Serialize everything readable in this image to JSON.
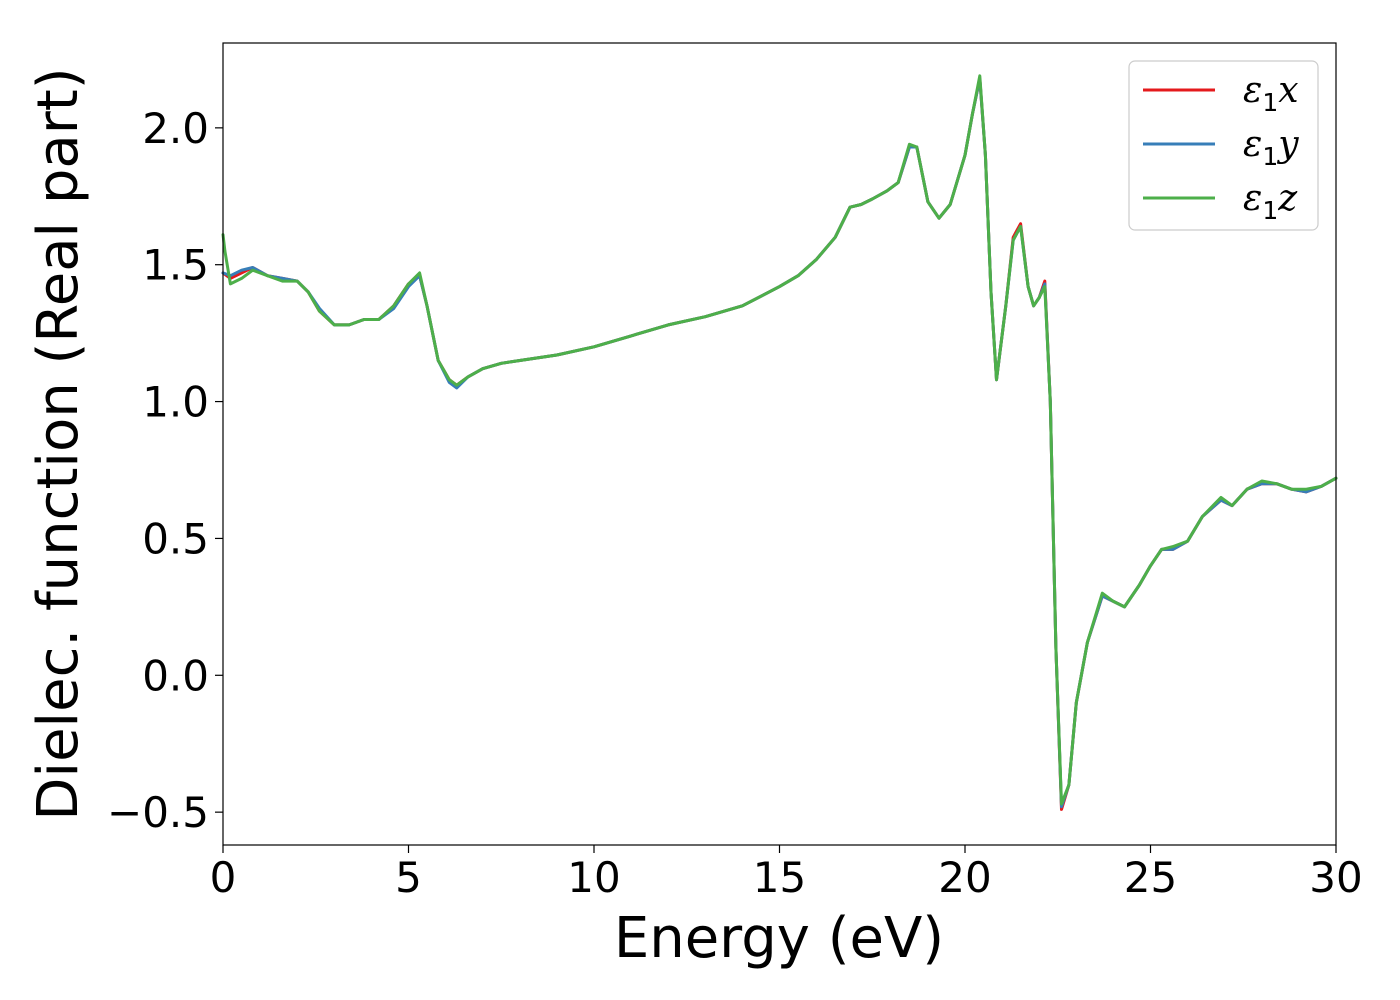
{
  "chart_data": {
    "type": "line",
    "title": "",
    "xlabel": "Energy (eV)",
    "ylabel": "Dielec. function (Real part)",
    "xlim": [
      0,
      30
    ],
    "ylim": [
      -0.62,
      2.31
    ],
    "xticks": [
      0,
      5,
      10,
      15,
      20,
      25,
      30
    ],
    "yticks": [
      -0.5,
      0.0,
      0.5,
      1.0,
      1.5,
      2.0
    ],
    "xtick_labels": [
      "0",
      "5",
      "10",
      "15",
      "20",
      "25",
      "30"
    ],
    "ytick_labels": [
      "−0.5",
      "0.0",
      "0.5",
      "1.0",
      "1.5",
      "2.0"
    ],
    "grid": false,
    "legend_position": "top-right",
    "series": [
      {
        "name": "ε1x",
        "legend_base": "ε",
        "legend_sub": "1",
        "legend_var": "x",
        "color": "#e41a1c",
        "x": [
          0,
          0.2,
          0.5,
          0.8,
          1.2,
          1.6,
          2.0,
          2.3,
          2.6,
          3.0,
          3.4,
          3.8,
          4.2,
          4.6,
          5.0,
          5.3,
          5.5,
          5.8,
          6.1,
          6.3,
          6.6,
          7.0,
          7.5,
          8.0,
          9.0,
          10.0,
          11.0,
          12.0,
          13.0,
          14.0,
          15.0,
          15.5,
          16.0,
          16.5,
          16.9,
          17.2,
          17.5,
          17.9,
          18.2,
          18.5,
          18.7,
          19.0,
          19.3,
          19.6,
          20.0,
          20.2,
          20.4,
          20.55,
          20.7,
          20.85,
          21.1,
          21.3,
          21.5,
          21.7,
          21.85,
          22.0,
          22.15,
          22.3,
          22.45,
          22.6,
          22.8,
          23.0,
          23.3,
          23.7,
          24.0,
          24.3,
          24.7,
          25.0,
          25.3,
          25.6,
          26.0,
          26.4,
          26.9,
          27.2,
          27.6,
          28.0,
          28.4,
          28.8,
          29.2,
          29.6,
          30.0
        ],
        "y": [
          1.47,
          1.45,
          1.47,
          1.49,
          1.46,
          1.45,
          1.44,
          1.4,
          1.33,
          1.28,
          1.28,
          1.3,
          1.3,
          1.35,
          1.43,
          1.46,
          1.35,
          1.15,
          1.08,
          1.06,
          1.09,
          1.12,
          1.14,
          1.15,
          1.17,
          1.2,
          1.24,
          1.28,
          1.31,
          1.35,
          1.42,
          1.46,
          1.52,
          1.6,
          1.71,
          1.72,
          1.74,
          1.77,
          1.8,
          1.93,
          1.93,
          1.73,
          1.67,
          1.72,
          1.9,
          2.05,
          2.18,
          1.9,
          1.4,
          1.08,
          1.35,
          1.6,
          1.65,
          1.42,
          1.35,
          1.38,
          1.44,
          1.0,
          0.1,
          -0.49,
          -0.4,
          -0.1,
          0.12,
          0.29,
          0.27,
          0.25,
          0.33,
          0.4,
          0.46,
          0.46,
          0.49,
          0.58,
          0.64,
          0.62,
          0.68,
          0.7,
          0.7,
          0.68,
          0.67,
          0.69,
          0.72
        ]
      },
      {
        "name": "ε1y",
        "legend_base": "ε",
        "legend_sub": "1",
        "legend_var": "y",
        "color": "#377eb8",
        "x": [
          0,
          0.2,
          0.5,
          0.8,
          1.2,
          1.6,
          2.0,
          2.3,
          2.6,
          3.0,
          3.4,
          3.8,
          4.2,
          4.6,
          5.0,
          5.3,
          5.5,
          5.8,
          6.1,
          6.3,
          6.6,
          7.0,
          7.5,
          8.0,
          9.0,
          10.0,
          11.0,
          12.0,
          13.0,
          14.0,
          15.0,
          15.5,
          16.0,
          16.5,
          16.9,
          17.2,
          17.5,
          17.9,
          18.2,
          18.5,
          18.7,
          19.0,
          19.3,
          19.6,
          20.0,
          20.2,
          20.4,
          20.55,
          20.7,
          20.85,
          21.1,
          21.3,
          21.5,
          21.7,
          21.85,
          22.0,
          22.15,
          22.3,
          22.45,
          22.6,
          22.8,
          23.0,
          23.3,
          23.7,
          24.0,
          24.3,
          24.7,
          25.0,
          25.3,
          25.6,
          26.0,
          26.4,
          26.9,
          27.2,
          27.6,
          28.0,
          28.4,
          28.8,
          29.2,
          29.6,
          30.0
        ],
        "y": [
          1.47,
          1.46,
          1.48,
          1.49,
          1.46,
          1.45,
          1.44,
          1.4,
          1.34,
          1.28,
          1.28,
          1.3,
          1.3,
          1.34,
          1.42,
          1.46,
          1.35,
          1.15,
          1.07,
          1.05,
          1.09,
          1.12,
          1.14,
          1.15,
          1.17,
          1.2,
          1.24,
          1.28,
          1.31,
          1.35,
          1.42,
          1.46,
          1.52,
          1.6,
          1.71,
          1.72,
          1.74,
          1.77,
          1.8,
          1.93,
          1.93,
          1.73,
          1.67,
          1.72,
          1.9,
          2.05,
          2.18,
          1.9,
          1.4,
          1.08,
          1.35,
          1.59,
          1.64,
          1.42,
          1.35,
          1.38,
          1.43,
          1.0,
          0.1,
          -0.48,
          -0.4,
          -0.1,
          0.12,
          0.29,
          0.27,
          0.25,
          0.33,
          0.4,
          0.46,
          0.46,
          0.49,
          0.58,
          0.64,
          0.62,
          0.68,
          0.7,
          0.7,
          0.68,
          0.67,
          0.69,
          0.72
        ]
      },
      {
        "name": "ε1z",
        "legend_base": "ε",
        "legend_sub": "1",
        "legend_var": "z",
        "color": "#4daf4a",
        "x": [
          0,
          0.05,
          0.2,
          0.5,
          0.8,
          1.2,
          1.6,
          2.0,
          2.3,
          2.6,
          3.0,
          3.4,
          3.8,
          4.2,
          4.6,
          5.0,
          5.3,
          5.5,
          5.8,
          6.1,
          6.3,
          6.6,
          7.0,
          7.5,
          8.0,
          9.0,
          10.0,
          11.0,
          12.0,
          13.0,
          14.0,
          15.0,
          15.5,
          16.0,
          16.5,
          16.9,
          17.2,
          17.5,
          17.9,
          18.2,
          18.5,
          18.7,
          19.0,
          19.3,
          19.6,
          20.0,
          20.2,
          20.4,
          20.55,
          20.7,
          20.85,
          21.1,
          21.3,
          21.5,
          21.7,
          21.85,
          22.0,
          22.15,
          22.3,
          22.45,
          22.6,
          22.8,
          23.0,
          23.3,
          23.7,
          24.0,
          24.3,
          24.7,
          25.0,
          25.3,
          25.6,
          26.0,
          26.4,
          26.9,
          27.2,
          27.6,
          28.0,
          28.4,
          28.8,
          29.2,
          29.6,
          30.0
        ],
        "y": [
          1.61,
          1.55,
          1.43,
          1.45,
          1.48,
          1.46,
          1.44,
          1.44,
          1.4,
          1.33,
          1.28,
          1.28,
          1.3,
          1.3,
          1.35,
          1.43,
          1.47,
          1.35,
          1.15,
          1.08,
          1.06,
          1.09,
          1.12,
          1.14,
          1.15,
          1.17,
          1.2,
          1.24,
          1.28,
          1.31,
          1.35,
          1.42,
          1.46,
          1.52,
          1.6,
          1.71,
          1.72,
          1.74,
          1.77,
          1.8,
          1.94,
          1.93,
          1.73,
          1.67,
          1.72,
          1.9,
          2.05,
          2.19,
          1.9,
          1.4,
          1.08,
          1.35,
          1.59,
          1.64,
          1.42,
          1.35,
          1.38,
          1.42,
          1.0,
          0.1,
          -0.47,
          -0.4,
          -0.1,
          0.12,
          0.3,
          0.27,
          0.25,
          0.33,
          0.4,
          0.46,
          0.47,
          0.49,
          0.58,
          0.65,
          0.62,
          0.68,
          0.71,
          0.7,
          0.68,
          0.68,
          0.69,
          0.72
        ]
      }
    ]
  }
}
